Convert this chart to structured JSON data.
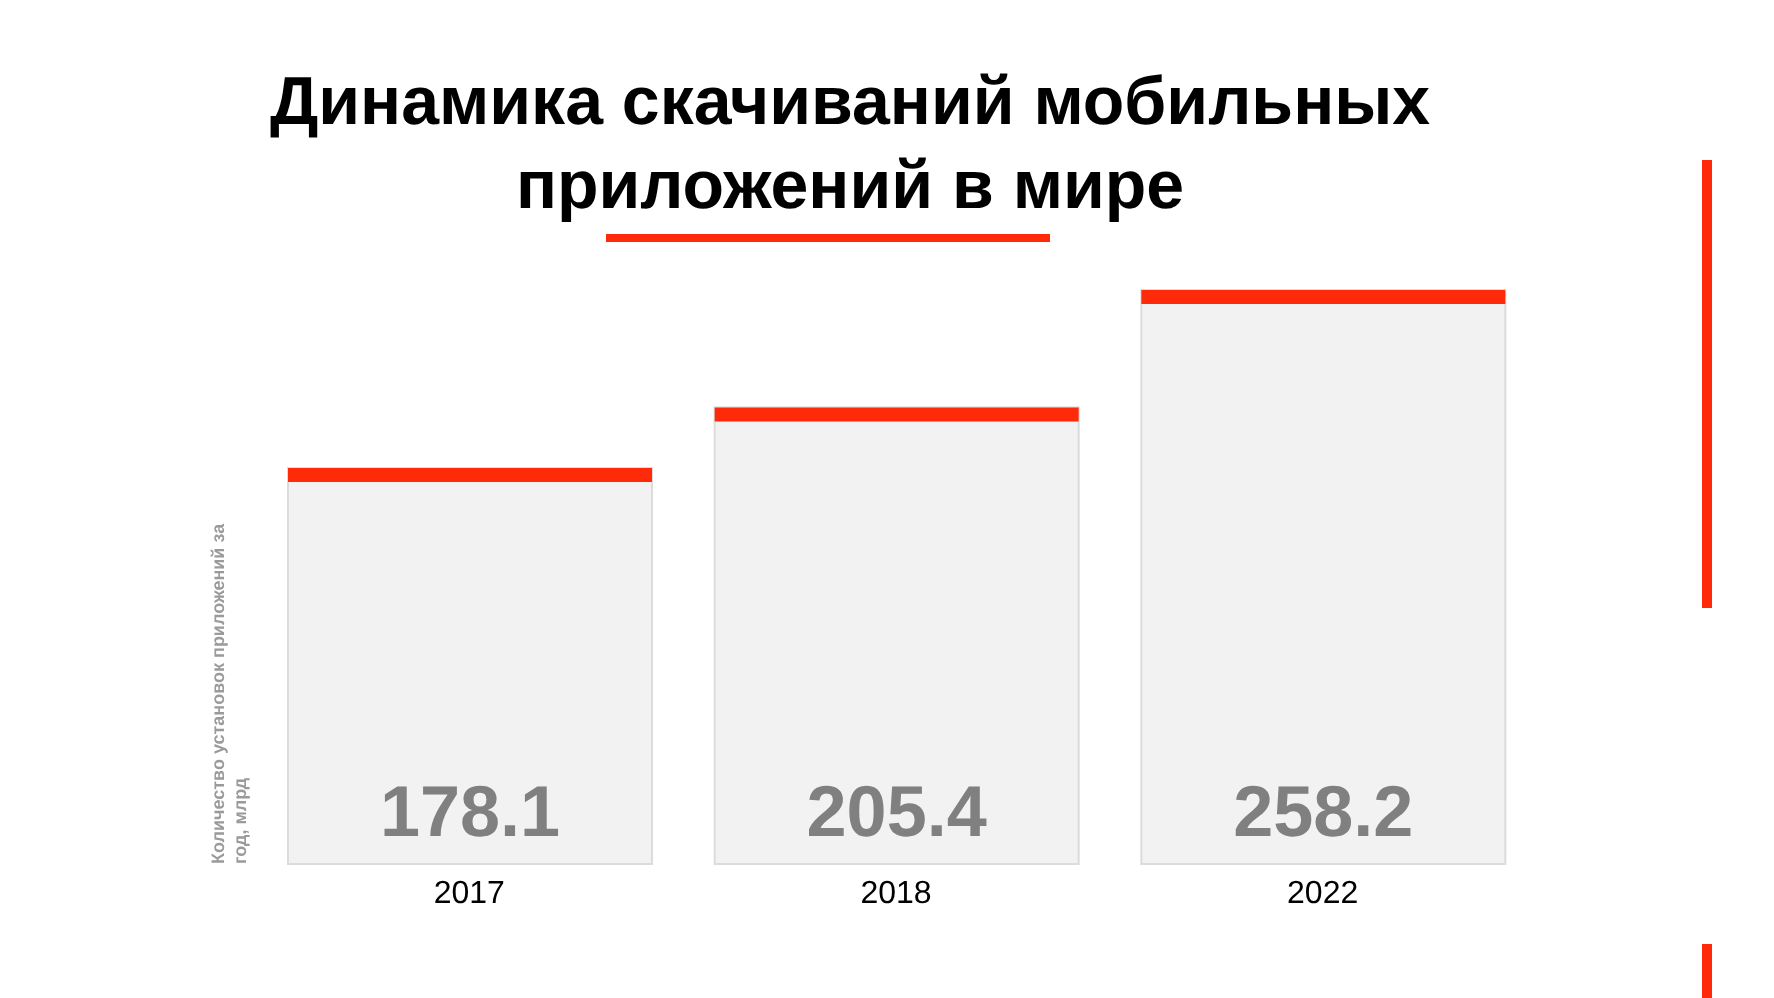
{
  "chart_data": {
    "type": "bar",
    "title": "Динамика скачиваний мобильных приложений в мире",
    "ylabel": "Количество установок приложений за год, млрд",
    "categories": [
      "2017",
      "2018",
      "2022"
    ],
    "values": [
      178.1,
      205.4,
      258.2
    ],
    "color": "#f2f2f2",
    "data_labels": true
  }
}
